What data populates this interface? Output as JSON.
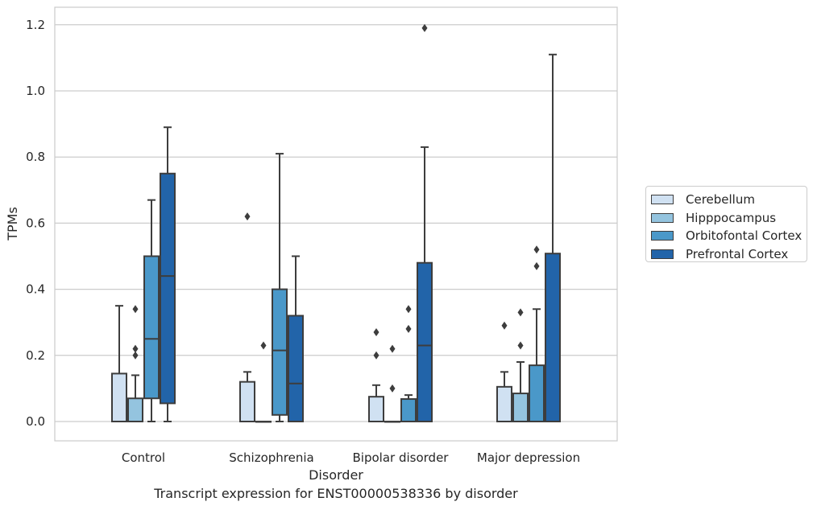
{
  "chart_data": {
    "type": "box",
    "caption": "Transcript expression for ENST00000538336 by disorder",
    "xlabel": "Disorder",
    "ylabel": "TPMs",
    "ylim": [
      -0.06,
      1.25
    ],
    "yticks": [
      "0.0",
      "0.2",
      "0.4",
      "0.6",
      "0.8",
      "1.0",
      "1.2"
    ],
    "ytick_values": [
      0,
      0.2,
      0.4,
      0.6,
      0.8,
      1.0,
      1.2
    ],
    "categories": [
      "Control",
      "Schizophrenia",
      "Bipolar disorder",
      "Major depression"
    ],
    "grid": true,
    "legend_position": "right",
    "series": [
      {
        "name": "Cerebellum",
        "color": "#d0e1f2",
        "boxes": [
          {
            "q1": 0,
            "median": 0,
            "q3": 0.145,
            "lo": 0,
            "hi": 0.35,
            "outliers": []
          },
          {
            "q1": 0,
            "median": 0,
            "q3": 0.12,
            "lo": 0,
            "hi": 0.15,
            "outliers": [
              0.62
            ]
          },
          {
            "q1": 0,
            "median": 0,
            "q3": 0.075,
            "lo": 0,
            "hi": 0.11,
            "outliers": [
              0.27,
              0.2
            ]
          },
          {
            "q1": 0,
            "median": 0,
            "q3": 0.105,
            "lo": 0,
            "hi": 0.15,
            "outliers": [
              0.29
            ]
          }
        ]
      },
      {
        "name": "Hipppocampus",
        "color": "#94c4df",
        "boxes": [
          {
            "q1": 0,
            "median": 0,
            "q3": 0.07,
            "lo": 0,
            "hi": 0.14,
            "outliers": [
              0.34,
              0.22,
              0.2
            ]
          },
          {
            "q1": 0,
            "median": 0,
            "q3": 0,
            "lo": 0,
            "hi": 0,
            "outliers": [
              0.23
            ]
          },
          {
            "q1": 0,
            "median": 0,
            "q3": 0,
            "lo": 0,
            "hi": 0,
            "outliers": [
              0.22,
              0.1
            ]
          },
          {
            "q1": 0,
            "median": 0,
            "q3": 0.085,
            "lo": 0,
            "hi": 0.18,
            "outliers": [
              0.33,
              0.23
            ]
          }
        ]
      },
      {
        "name": "Orbitofontal Cortex",
        "color": "#4a98c9",
        "boxes": [
          {
            "q1": 0.07,
            "median": 0.25,
            "q3": 0.5,
            "lo": 0,
            "hi": 0.67,
            "outliers": []
          },
          {
            "q1": 0.02,
            "median": 0.215,
            "q3": 0.4,
            "lo": 0,
            "hi": 0.81,
            "outliers": []
          },
          {
            "q1": 0,
            "median": 0,
            "q3": 0.068,
            "lo": 0,
            "hi": 0.08,
            "outliers": [
              0.34,
              0.28
            ]
          },
          {
            "q1": 0,
            "median": 0,
            "q3": 0.17,
            "lo": 0,
            "hi": 0.34,
            "outliers": [
              0.52,
              0.47
            ]
          }
        ]
      },
      {
        "name": "Prefrontal Cortex",
        "color": "#2264a9",
        "boxes": [
          {
            "q1": 0.055,
            "median": 0.44,
            "q3": 0.75,
            "lo": 0,
            "hi": 0.89,
            "outliers": []
          },
          {
            "q1": 0,
            "median": 0.115,
            "q3": 0.32,
            "lo": 0,
            "hi": 0.5,
            "outliers": []
          },
          {
            "q1": 0,
            "median": 0.23,
            "q3": 0.48,
            "lo": 0,
            "hi": 0.83,
            "outliers": [
              1.19
            ]
          },
          {
            "q1": 0,
            "median": 0,
            "q3": 0.508,
            "lo": 0,
            "hi": 1.11,
            "outliers": []
          }
        ]
      }
    ]
  }
}
